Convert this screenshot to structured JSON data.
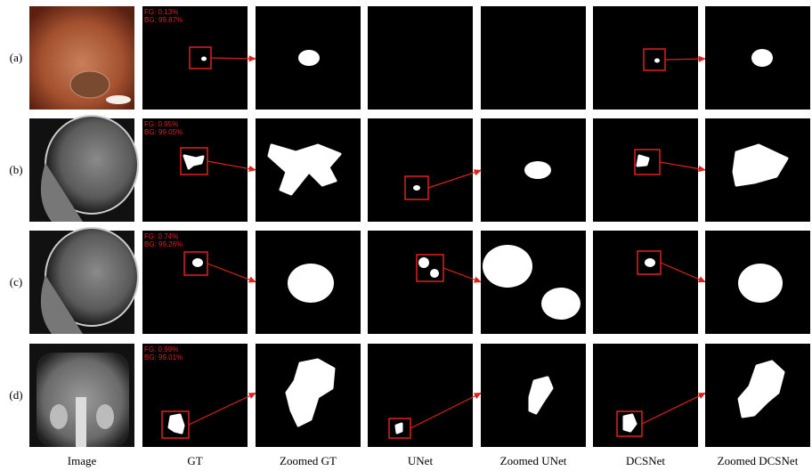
{
  "rows": [
    {
      "label": "(a)",
      "fg": "FG:  0.13%",
      "bg": "BG: 99.87%"
    },
    {
      "label": "(b)",
      "fg": "FG:  0.95%",
      "bg": "BG: 99.05%"
    },
    {
      "label": "(c)",
      "fg": "FG:  0.74%",
      "bg": "BG: 99.26%"
    },
    {
      "label": "(d)",
      "fg": "FG:  0.99%",
      "bg": "BG: 99.01%"
    }
  ],
  "columns": [
    "Image",
    "GT",
    "Zoomed GT",
    "UNet",
    "Zoomed UNet",
    "DCSNet",
    "Zoomed DCSNet"
  ]
}
